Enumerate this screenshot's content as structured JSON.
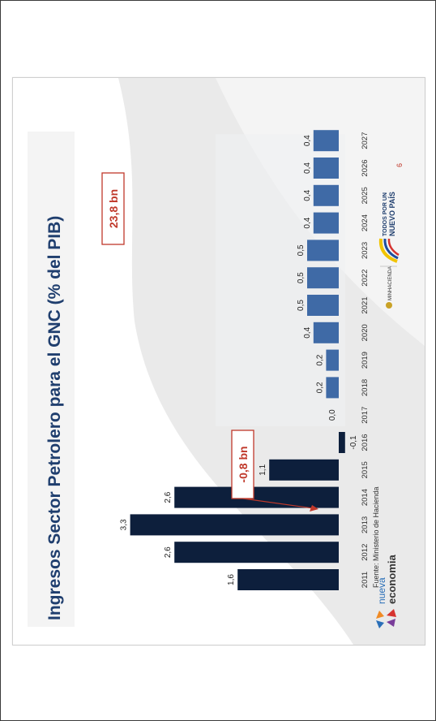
{
  "slide": {
    "title": "Ingresos Sector Petrolero para el GNC (% del PIB)",
    "source": "Fuente: Ministerio de Hacienda",
    "page_number": "6",
    "logos": {
      "nueva_economia_line1": "nueva",
      "nueva_economia_line2": "economia",
      "minhacienda": "MINHACIENDA",
      "todos_line1": "TODOS POR UN",
      "todos_line2": "NUEVO PAÍS"
    },
    "callouts": {
      "bn_2013": "23,8 bn",
      "bn_2016": "-0,8 bn"
    }
  },
  "colors": {
    "actual_bar": "#0d1f3c",
    "projected_bar": "#3f6aa6",
    "callout": "#c0392b",
    "title": "#1f3e6e",
    "page_number": "#c0392b"
  },
  "chart_data": {
    "type": "bar",
    "orientation": "rotated-90",
    "categories": [
      "2011",
      "2012",
      "2013",
      "2014",
      "2015",
      "2016",
      "2017",
      "2018",
      "2019",
      "2020",
      "2021",
      "2022",
      "2023",
      "2024",
      "2025",
      "2026",
      "2027"
    ],
    "values": [
      1.6,
      2.6,
      3.3,
      2.6,
      1.1,
      -0.1,
      0.0,
      0.2,
      0.2,
      0.4,
      0.5,
      0.5,
      0.5,
      0.4,
      0.4,
      0.4,
      0.4
    ],
    "value_labels": [
      "1,6",
      "2,6",
      "3,3",
      "2,6",
      "1,1",
      "-0,1",
      "0,0",
      "0,2",
      "0,2",
      "0,4",
      "0,5",
      "0,5",
      "0,5",
      "0,4",
      "0,4",
      "0,4",
      "0,4"
    ],
    "projected_from": "2017",
    "title": "Ingresos Sector Petrolero para el GNC (% del PIB)",
    "xlabel": "",
    "ylabel": "",
    "ylim": [
      -0.2,
      3.5
    ],
    "grid": false,
    "legend": "none"
  }
}
